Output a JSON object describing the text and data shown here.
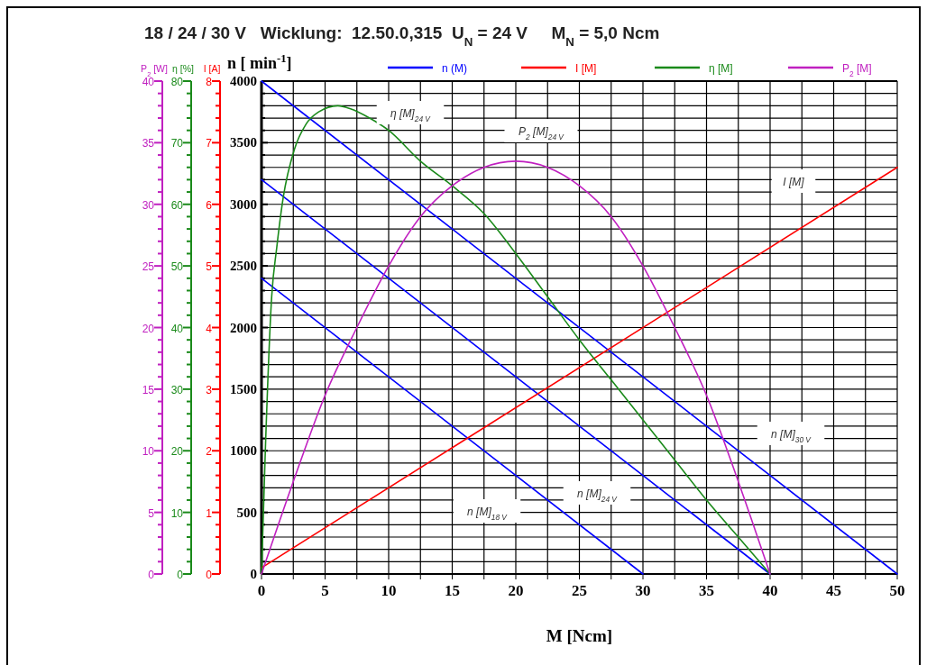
{
  "chart_data": [
    {
      "type": "line",
      "title": "18 / 24 / 30 V   Wicklung:  12.50.0,315  U$_{N}$ = 24 V     M$_{N}$ = 5,0 Ncm",
      "xlabel": "M [Ncm]",
      "ylabel": "n [ min$^{-1}$]",
      "y2label": "I [A]",
      "y3label": "η [%]",
      "xlim": [
        0,
        50
      ],
      "xticks": [
        0,
        {
          "value": 2.5,
          "label": null
        },
        5,
        {
          "value": 7.5,
          "label": null
        },
        10,
        {
          "value": 12.5,
          "label": null
        },
        15,
        {
          "value": 17.5,
          "label": null
        },
        20,
        {
          "value": 22.5,
          "label": null
        },
        25,
        {
          "value": 27.5,
          "label": null
        },
        30,
        {
          "value": 32.5,
          "label": null
        },
        35,
        {
          "value": 37.5,
          "label": null
        },
        40,
        {
          "value": 42.5,
          "label": null
        },
        45,
        {
          "value": 47.5,
          "label": null
        },
        50
      ],
      "ylim": [
        0,
        4000
      ],
      "yticks": [
        0,
        {
          "value": 100,
          "label": null
        },
        {
          "value": 200,
          "label": null
        },
        {
          "value": 300,
          "label": null
        },
        {
          "value": 400,
          "label": null
        },
        500,
        {
          "value": 600,
          "label": null
        },
        {
          "value": 700,
          "label": null
        },
        {
          "value": 800,
          "label": null
        },
        {
          "value": 900,
          "label": null
        },
        1000,
        {
          "value": 1100,
          "label": null
        },
        {
          "value": 1200,
          "label": null
        },
        {
          "value": 1300,
          "label": null
        },
        {
          "value": 1400,
          "label": null
        },
        1500,
        {
          "value": 1600,
          "label": null
        },
        {
          "value": 1700,
          "label": null
        },
        {
          "value": 1800,
          "label": null
        },
        {
          "value": 1900,
          "label": null
        },
        2000,
        {
          "value": 2100,
          "label": null
        },
        {
          "value": 2200,
          "label": null
        },
        {
          "value": 2300,
          "label": null
        },
        {
          "value": 2400,
          "label": null
        },
        2500,
        {
          "value": 2600,
          "label": null
        },
        {
          "value": 2700,
          "label": null
        },
        {
          "value": 2800,
          "label": null
        },
        {
          "value": 2900,
          "label": null
        },
        3000,
        {
          "value": 3100,
          "label": null
        },
        {
          "value": 3200,
          "label": null
        },
        {
          "value": 3300,
          "label": null
        },
        {
          "value": 3400,
          "label": null
        },
        3500,
        {
          "value": 3600,
          "label": null
        },
        {
          "value": 3700,
          "label": null
        },
        {
          "value": 3800,
          "label": null
        },
        {
          "value": 3900,
          "label": null
        },
        4000
      ],
      "y2lim": [
        0,
        8
      ],
      "y2ticks": [
        0,
        {
          "value": 0.2,
          "label": null
        },
        {
          "value": 0.4,
          "label": null
        },
        {
          "value": 0.6,
          "label": null
        },
        {
          "value": 0.8,
          "label": null
        },
        1,
        {
          "value": 1.2,
          "label": null
        },
        {
          "value": 1.4,
          "label": null
        },
        {
          "value": 1.6,
          "label": null
        },
        {
          "value": 1.8,
          "label": null
        },
        2,
        {
          "value": 2.2,
          "label": null
        },
        {
          "value": 2.4,
          "label": null
        },
        {
          "value": 2.6,
          "label": null
        },
        {
          "value": 2.8,
          "label": null
        },
        3,
        {
          "value": 3.2,
          "label": null
        },
        {
          "value": 3.4,
          "label": null
        },
        {
          "value": 3.6,
          "label": null
        },
        {
          "value": 3.8,
          "label": null
        },
        4,
        {
          "value": 4.2,
          "label": null
        },
        {
          "value": 4.4,
          "label": null
        },
        {
          "value": 4.6,
          "label": null
        },
        {
          "value": 4.8,
          "label": null
        },
        5,
        {
          "value": 5.2,
          "label": null
        },
        {
          "value": 5.4,
          "label": null
        },
        {
          "value": 5.6,
          "label": null
        },
        {
          "value": 5.8,
          "label": null
        },
        6,
        {
          "value": 6.2,
          "label": null
        },
        {
          "value": 6.4,
          "label": null
        },
        {
          "value": 6.6,
          "label": null
        },
        {
          "value": 6.8,
          "label": null
        },
        7,
        {
          "value": 7.2,
          "label": null
        },
        {
          "value": 7.4,
          "label": null
        },
        {
          "value": 7.6,
          "label": null
        },
        {
          "value": 7.8,
          "label": null
        },
        8
      ],
      "y3lim": [
        0,
        80
      ],
      "y3ticks": [
        0,
        {
          "value": 2,
          "label": null
        },
        {
          "value": 4,
          "label": null
        },
        {
          "value": 6,
          "label": null
        },
        {
          "value": 8,
          "label": null
        },
        10,
        {
          "value": 12,
          "label": null
        },
        {
          "value": 14,
          "label": null
        },
        {
          "value": 16,
          "label": null
        },
        {
          "value": 18,
          "label": null
        },
        20,
        {
          "value": 22,
          "label": null
        },
        {
          "value": 24,
          "label": null
        },
        {
          "value": 26,
          "label": null
        },
        {
          "value": 28,
          "label": null
        },
        30,
        {
          "value": 32,
          "label": null
        },
        {
          "value": 34,
          "label": null
        },
        {
          "value": 36,
          "label": null
        },
        {
          "value": 38,
          "label": null
        },
        40,
        {
          "value": 42,
          "label": null
        },
        {
          "value": 44,
          "label": null
        },
        {
          "value": 46,
          "label": null
        },
        {
          "value": 48,
          "label": null
        },
        50,
        {
          "value": 52,
          "label": null
        },
        {
          "value": 54,
          "label": null
        },
        {
          "value": 56,
          "label": null
        },
        {
          "value": 58,
          "label": null
        },
        60,
        {
          "value": 62,
          "label": null
        },
        {
          "value": 64,
          "label": null
        },
        {
          "value": 66,
          "label": null
        },
        {
          "value": 68,
          "label": null
        },
        70,
        {
          "value": 72,
          "label": null
        },
        {
          "value": 74,
          "label": null
        },
        {
          "value": 76,
          "label": null
        },
        {
          "value": 78,
          "label": null
        },
        80
      ],
      "grid": true,
      "legend": "top",
      "series": [
        {
          "name": "n (M)",
          "color": "#0000ff",
          "x": [
            0,
            50
          ],
          "values": [
            4000,
            0
          ]
        },
        {
          "color": "#0000ff",
          "x": [
            0,
            40
          ],
          "values": [
            3200,
            0
          ]
        },
        {
          "color": "#0000ff",
          "x": [
            0,
            30
          ],
          "values": [
            2400,
            0
          ]
        },
        {
          "name": "I [M]",
          "color": "#ff0000",
          "axis": "y2",
          "x": [
            0,
            50
          ],
          "values": [
            0.1,
            6.6
          ]
        },
        {
          "name": "η [M]",
          "color": "#1a8a1a",
          "axis": "y3",
          "x": [
            0,
            0.3,
            0.8,
            1.2,
            1.7,
            2.6,
            3.5,
            4.5,
            6,
            7,
            8.5,
            10,
            12.5,
            15,
            17.5,
            20,
            22.5,
            25,
            27.5,
            30,
            32.5,
            35,
            37.5,
            40
          ],
          "values": [
            0,
            20,
            45,
            53,
            61,
            69,
            73,
            75,
            76,
            75.5,
            74,
            72,
            67,
            63,
            58.5,
            52,
            45,
            38,
            31.5,
            25,
            18.5,
            12,
            6,
            0
          ]
        }
      ],
      "annotations": [
        "η [M]$_{24 V}$",
        "I [M]",
        "n [M]$_{30 V}$",
        "n [M]$_{24 V}$",
        "n [M]$_{18 V}$"
      ]
    },
    {
      "type": "line",
      "ylabel": "P$_{2}$ [W]",
      "tick_labels": "y",
      "legend": "top",
      "xlim": [
        0,
        50
      ],
      "ylim": [
        0,
        40
      ],
      "yticks": [
        0,
        {
          "value": 1,
          "label": null
        },
        {
          "value": 2,
          "label": null
        },
        {
          "value": 3,
          "label": null
        },
        {
          "value": 4,
          "label": null
        },
        5,
        {
          "value": 6,
          "label": null
        },
        {
          "value": 7,
          "label": null
        },
        {
          "value": 8,
          "label": null
        },
        {
          "value": 9,
          "label": null
        },
        10,
        {
          "value": 11,
          "label": null
        },
        {
          "value": 12,
          "label": null
        },
        {
          "value": 13,
          "label": null
        },
        {
          "value": 14,
          "label": null
        },
        15,
        {
          "value": 16,
          "label": null
        },
        {
          "value": 17,
          "label": null
        },
        {
          "value": 18,
          "label": null
        },
        {
          "value": 19,
          "label": null
        },
        20,
        {
          "value": 21,
          "label": null
        },
        {
          "value": 22,
          "label": null
        },
        {
          "value": 23,
          "label": null
        },
        {
          "value": 24,
          "label": null
        },
        25,
        {
          "value": 26,
          "label": null
        },
        {
          "value": 27,
          "label": null
        },
        {
          "value": 28,
          "label": null
        },
        {
          "value": 29,
          "label": null
        },
        30,
        {
          "value": 31,
          "label": null
        },
        {
          "value": 32,
          "label": null
        },
        {
          "value": 33,
          "label": null
        },
        {
          "value": 34,
          "label": null
        },
        35,
        {
          "value": 36,
          "label": null
        },
        {
          "value": 37,
          "label": null
        },
        {
          "value": 38,
          "label": null
        },
        {
          "value": 39,
          "label": null
        },
        40
      ],
      "series": [
        {
          "name": "P$_{2}$ [M]",
          "color": "#c020c0",
          "x": [
            0,
            2.5,
            5,
            7.5,
            10,
            12.5,
            15,
            17.5,
            20,
            22.5,
            25,
            27.5,
            30,
            32.5,
            35,
            37.5,
            40
          ],
          "values": [
            0,
            7.5,
            14.5,
            20,
            25,
            29,
            31.5,
            33,
            33.5,
            33,
            31.5,
            29,
            25,
            20,
            14.5,
            7.5,
            0
          ]
        }
      ],
      "annotations": [
        "P$_{2}$ [M]$_{24 V}$"
      ]
    }
  ]
}
